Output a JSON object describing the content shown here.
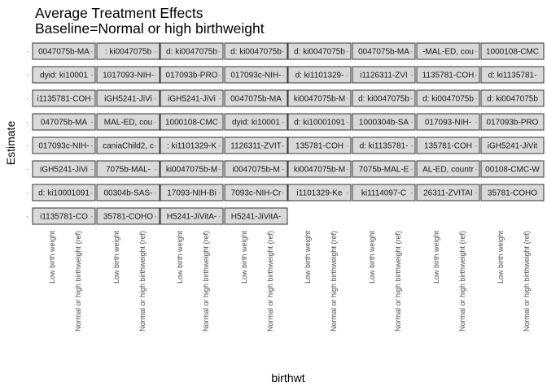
{
  "chart_data": {
    "type": "scatter",
    "title": [
      "Average Treatment Effects",
      "Baseline=Normal or high birthweight"
    ],
    "xlabel": "birthwt",
    "ylabel": "Estimate",
    "x_categories": [
      "Low birth weight",
      "Normal or high birthweight (ref)"
    ],
    "grid": false,
    "facet_rows": [
      [
        "0047075b-MA",
        ": ki0047075b",
        "d: ki0047075b",
        "d: ki0047075b",
        "d: ki0047075b",
        "0047075b-MA",
        "-MAL-ED, cou",
        "1000108-CMC"
      ],
      [
        "dyid: ki10001",
        "1017093-NIH-",
        "017093b-PRO",
        "017093c-NIH-",
        "d: ki1101329-",
        "i1126311-ZVI",
        "1135781-COH",
        "d: ki1135781-"
      ],
      [
        "i1135781-COH",
        "iGH5241-JiVi",
        "iGH5241-JiVi",
        "0047075b-MA",
        "ki0047075b-M",
        "d: ki0047075b",
        "d: ki0047075b",
        "d: ki0047075b"
      ],
      [
        "047075b-MA",
        "MAL-ED, cou",
        "1000108-CMC",
        "dyid: ki10001",
        "d: ki10001091",
        "1000304b-SA",
        "017093-NIH-",
        "017093b-PRO"
      ],
      [
        "017093c-NIH-",
        "caniaChild2, c",
        ": ki1101329-K",
        "1126311-ZVIT",
        "135781-COH",
        "d: ki1135781-",
        "135781-COH",
        "iGH5241-JiVit"
      ],
      [
        "iGH5241-JiVi",
        "7075b-MAL-",
        "ki0047075b-M",
        "i0047075b-M",
        "ki0047075b-M",
        "7075b-MAL-E",
        "AL-ED, countr",
        "00108-CMC-W"
      ],
      [
        "d: ki10001091",
        "00304b-SAS-",
        "17093-NIH-Bi",
        "7093c-NIH-Cr",
        "i1101329-Ke",
        "ki1114097-C",
        "26311-ZVITAI",
        "35781-COHO"
      ],
      [
        "i1135781-CO",
        "35781-COHO",
        "H5241-JiVitA-",
        "H5241-JiVitA-"
      ]
    ]
  }
}
